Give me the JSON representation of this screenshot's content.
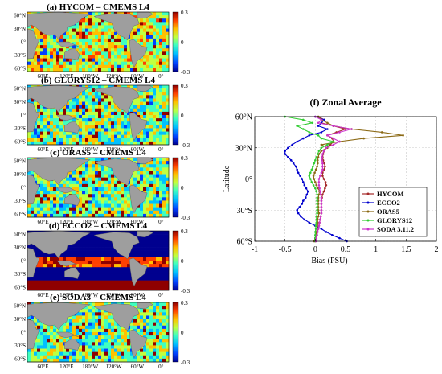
{
  "maps": {
    "lat_ticks": [
      "60°N",
      "30°N",
      "0°",
      "30°S",
      "60°S"
    ],
    "lon_ticks": [
      "60°E",
      "120°E",
      "180°W",
      "120°W",
      "60°W",
      "0°"
    ],
    "colorbar_ticks": [
      "0.3",
      "0",
      "-0.3"
    ],
    "colorbar_range": [
      -0.3,
      0.3
    ],
    "colormap": [
      "#00008f",
      "#0040ff",
      "#00c0ff",
      "#40ffbf",
      "#c0ff40",
      "#ffc000",
      "#ff4000",
      "#8f0000"
    ],
    "land_color": "#9e9e9e",
    "panels": [
      {
        "title": "(a) HYCOM – CMEMS L4",
        "bias_level": 0.06,
        "pattern": "mixed"
      },
      {
        "title": "(b) GLORYS12 – CMEMS L4",
        "bias_level": 0.0,
        "pattern": "mixed"
      },
      {
        "title": "(c) ORAS5 – CMEMS L4",
        "bias_level": 0.0,
        "pattern": "mixed"
      },
      {
        "title": "(d) ECCO2 – CMEMS L4",
        "bias_level": -0.3,
        "pattern": "strong"
      },
      {
        "title": "(e) SODA3 – CMEMS L4",
        "bias_level": 0.0,
        "pattern": "mixed"
      }
    ]
  },
  "chart_data": {
    "type": "line",
    "title": "(f) Zonal Average",
    "xlabel": "Bias  (PSU)",
    "ylabel": "Latitude",
    "xlim": [
      -1,
      2
    ],
    "ylim": [
      -60,
      60
    ],
    "xticks": [
      -1,
      -0.5,
      0,
      0.5,
      1,
      1.5,
      2
    ],
    "xtick_labels": [
      "-1",
      "-0.5",
      "0",
      "0.5",
      "1",
      "1.5",
      "2"
    ],
    "yticks": [
      60,
      30,
      0,
      -30,
      -60
    ],
    "ytick_labels": [
      "60°N",
      "30°N",
      "0°",
      "30°S",
      "60°S"
    ],
    "grid": true,
    "legend_position": "lower-right",
    "latitude": [
      -60,
      -57,
      -54,
      -51,
      -48,
      -45,
      -42,
      -39,
      -36,
      -33,
      -30,
      -27,
      -24,
      -21,
      -18,
      -15,
      -12,
      -9,
      -6,
      -3,
      0,
      3,
      6,
      9,
      12,
      15,
      18,
      21,
      24,
      27,
      30,
      33,
      36,
      39,
      42,
      45,
      48,
      51,
      54,
      57,
      60
    ],
    "series": [
      {
        "name": "HYCOM",
        "color": "#a52a2a",
        "values": [
          0.0,
          0.0,
          0.02,
          0.03,
          0.05,
          0.06,
          0.07,
          0.08,
          0.09,
          0.1,
          0.1,
          0.1,
          0.1,
          0.1,
          0.11,
          0.12,
          0.14,
          0.16,
          0.18,
          0.17,
          0.14,
          0.12,
          0.12,
          0.14,
          0.16,
          0.15,
          0.13,
          0.12,
          0.13,
          0.15,
          0.18,
          0.25,
          0.3,
          0.28,
          0.2,
          0.35,
          0.5,
          0.3,
          0.1,
          0.15,
          0.05
        ]
      },
      {
        "name": "ECCO2",
        "color": "#0000cd",
        "values": [
          0.52,
          0.4,
          0.28,
          0.18,
          0.1,
          0.0,
          -0.1,
          -0.18,
          -0.24,
          -0.28,
          -0.3,
          -0.26,
          -0.22,
          -0.2,
          -0.16,
          -0.14,
          -0.12,
          -0.15,
          -0.18,
          -0.2,
          -0.22,
          -0.25,
          -0.28,
          -0.3,
          -0.32,
          -0.36,
          -0.4,
          -0.45,
          -0.5,
          -0.5,
          -0.45,
          -0.38,
          -0.3,
          -0.2,
          -0.1,
          0.1,
          0.2,
          0.05,
          0.1,
          0.15,
          0.0
        ]
      },
      {
        "name": "ORAS5",
        "color": "#8b6914",
        "values": [
          -0.02,
          0.0,
          0.01,
          0.02,
          0.03,
          0.04,
          0.04,
          0.04,
          0.05,
          0.06,
          0.05,
          0.05,
          0.05,
          0.05,
          0.05,
          0.06,
          0.07,
          0.05,
          0.02,
          0.0,
          -0.02,
          -0.03,
          -0.01,
          0.01,
          0.03,
          0.04,
          0.04,
          0.05,
          0.06,
          0.1,
          0.2,
          0.1,
          0.4,
          0.8,
          1.45,
          1.1,
          0.6,
          0.3,
          0.2,
          0.1,
          0.05
        ]
      },
      {
        "name": "GLORYS12",
        "color": "#32cd32",
        "values": [
          0.0,
          0.0,
          0.0,
          0.0,
          0.01,
          0.01,
          0.02,
          0.02,
          0.02,
          0.03,
          0.03,
          0.03,
          0.03,
          0.03,
          0.03,
          0.03,
          0.02,
          0.0,
          -0.03,
          -0.06,
          -0.08,
          -0.1,
          -0.08,
          -0.06,
          -0.04,
          -0.02,
          0.0,
          0.02,
          0.04,
          0.06,
          0.1,
          0.2,
          0.3,
          0.1,
          0.05,
          -0.1,
          -0.2,
          -0.3,
          -0.05,
          -0.2,
          -0.5
        ]
      },
      {
        "name": "SODA 3.11.2",
        "color": "#cc33cc",
        "values": [
          0.01,
          0.02,
          0.03,
          0.04,
          0.05,
          0.06,
          0.07,
          0.08,
          0.09,
          0.1,
          0.1,
          0.1,
          0.1,
          0.1,
          0.1,
          0.09,
          0.08,
          0.07,
          0.06,
          0.06,
          0.06,
          0.08,
          0.1,
          0.12,
          0.12,
          0.12,
          0.11,
          0.11,
          0.12,
          0.14,
          0.18,
          0.3,
          0.4,
          0.3,
          0.2,
          0.4,
          0.6,
          0.3,
          0.05,
          0.1,
          0.0
        ]
      }
    ]
  }
}
